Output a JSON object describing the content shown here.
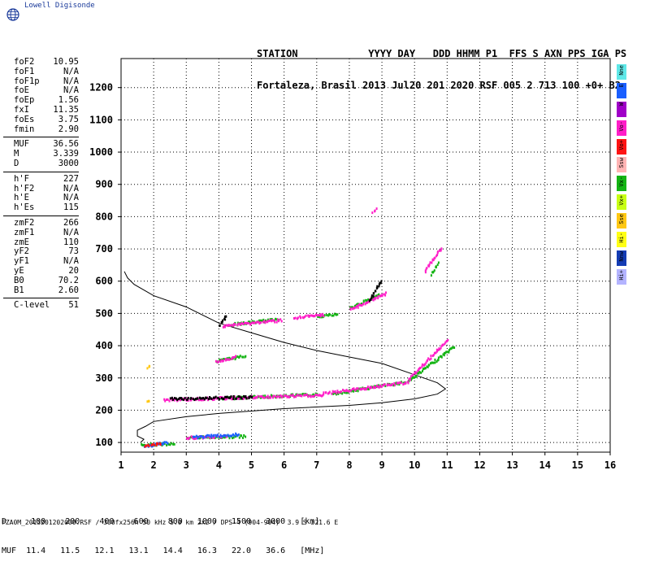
{
  "logo": {
    "text": "Lowell Digisonde"
  },
  "header": {
    "line1": "STATION            YYYY DAY   DDD HHMM P1  FFS S AXN PPS IGA PS",
    "line2": "Fortaleza, Brasil 2013 Jul20 201 2020 RSF 005 2 713 100 +0+ B2"
  },
  "params": {
    "group1": [
      {
        "label": "foF2",
        "value": "10.95"
      },
      {
        "label": "foF1",
        "value": "N/A"
      },
      {
        "label": "foF1p",
        "value": "N/A"
      },
      {
        "label": "foE",
        "value": "N/A"
      },
      {
        "label": "foEp",
        "value": "1.56"
      },
      {
        "label": "fxI",
        "value": "11.35"
      },
      {
        "label": "foEs",
        "value": "3.75"
      },
      {
        "label": "fmin",
        "value": "2.90"
      }
    ],
    "group2": [
      {
        "label": "MUF",
        "value": "36.56"
      },
      {
        "label": "M",
        "value": "3.339"
      },
      {
        "label": "D",
        "value": "3000"
      }
    ],
    "group3": [
      {
        "label": "h'F",
        "value": "227"
      },
      {
        "label": "h'F2",
        "value": "N/A"
      },
      {
        "label": "h'E",
        "value": "N/A"
      },
      {
        "label": "h'Es",
        "value": "115"
      }
    ],
    "group4": [
      {
        "label": "zmF2",
        "value": "266"
      },
      {
        "label": "zmF1",
        "value": "N/A"
      },
      {
        "label": "zmE",
        "value": "110"
      },
      {
        "label": "yF2",
        "value": "73"
      },
      {
        "label": "yF1",
        "value": "N/A"
      },
      {
        "label": "yE",
        "value": "20"
      },
      {
        "label": "B0",
        "value": "70.2"
      },
      {
        "label": "B1",
        "value": "2.60"
      }
    ],
    "group5": [
      {
        "label": "C-level",
        "value": "51"
      }
    ]
  },
  "legend": [
    {
      "label": "Nne",
      "color": "#5fe8e8"
    },
    {
      "label": "E",
      "color": "#1a5fff"
    },
    {
      "label": "W",
      "color": "#a000c8"
    },
    {
      "label": "Vo-",
      "color": "#ff1ec8"
    },
    {
      "label": "Vo+",
      "color": "#ff1414"
    },
    {
      "label": "Ssw",
      "color": "#ffb4b4"
    },
    {
      "label": "Vx-",
      "color": "#14b414"
    },
    {
      "label": "Vx+",
      "color": "#c8ff14"
    },
    {
      "label": "Sse",
      "color": "#ffc814"
    },
    {
      "label": "Hi-",
      "color": "#ffff14"
    },
    {
      "label": "Nnw",
      "color": "#143cb4"
    },
    {
      "label": "Hi+",
      "color": "#b4b4ff"
    }
  ],
  "bottom": {
    "line1": "D     100    200    400    600    800   1000   1500   3000   [km]",
    "line2": "MUF  11.4   11.5   12.1   13.1   14.4   16.3   22.0   36.6   [MHz]"
  },
  "footer": "FZA0M_2013201202000.RSF / 300fx256h 50 kHz 5.0 km 2x2 / DPS-4 (904-904)  3.9 S 321.6 E",
  "chart_data": {
    "type": "scatter",
    "xlim": [
      1,
      16
    ],
    "ylim": [
      70,
      1290
    ],
    "xticks": [
      1,
      2,
      3,
      4,
      5,
      6,
      7,
      8,
      9,
      10,
      11,
      12,
      13,
      14,
      15,
      16
    ],
    "yticks": [
      100,
      200,
      300,
      400,
      500,
      600,
      700,
      800,
      900,
      1000,
      1100,
      1200
    ],
    "grid": true,
    "profile": {
      "color": "#000000",
      "points": [
        [
          1.1,
          630
        ],
        [
          1.2,
          610
        ],
        [
          1.4,
          590
        ],
        [
          2,
          555
        ],
        [
          3,
          520
        ],
        [
          4,
          470
        ],
        [
          5,
          440
        ],
        [
          6,
          410
        ],
        [
          7,
          385
        ],
        [
          8,
          365
        ],
        [
          9,
          345
        ],
        [
          10,
          310
        ],
        [
          10.7,
          285
        ],
        [
          10.95,
          266
        ],
        [
          10.7,
          250
        ],
        [
          10,
          235
        ],
        [
          9,
          223
        ],
        [
          8,
          215
        ],
        [
          6,
          205
        ],
        [
          4,
          190
        ],
        [
          3,
          180
        ],
        [
          2,
          165
        ],
        [
          1.75,
          150
        ],
        [
          1.5,
          138
        ],
        [
          1.5,
          120
        ],
        [
          1.7,
          110
        ],
        [
          1.6,
          100
        ]
      ]
    },
    "echo_groups": [
      {
        "color": "#14b414",
        "segments": [
          {
            "x": [
              4,
              7
            ],
            "y": [
              240,
              252
            ]
          },
          {
            "x": [
              7.5,
              9.8
            ],
            "y": [
              255,
              292
            ]
          },
          {
            "x": [
              9.8,
              11.2
            ],
            "y": [
              295,
              400
            ]
          },
          {
            "x": [
              3,
              4.8
            ],
            "y": [
              118,
              122
            ]
          },
          {
            "x": [
              1.6,
              2.6
            ],
            "y": [
              95,
              100
            ]
          },
          {
            "x": [
              3.9,
              4.8
            ],
            "y": [
              355,
              372
            ]
          },
          {
            "x": [
              4.3,
              5.8
            ],
            "y": [
              468,
              485
            ]
          },
          {
            "x": [
              7,
              7.6
            ],
            "y": [
              495,
              500
            ]
          },
          {
            "x": [
              8,
              8.9
            ],
            "y": [
              520,
              560
            ]
          },
          {
            "x": [
              10.5,
              10.7
            ],
            "y": [
              625,
              660
            ]
          }
        ]
      },
      {
        "color": "#ff1ec8",
        "segments": [
          {
            "x": [
              2.3,
              7.2
            ],
            "y": [
              235,
              250
            ]
          },
          {
            "x": [
              7.2,
              9.8
            ],
            "y": [
              255,
              290
            ]
          },
          {
            "x": [
              9.8,
              11
            ],
            "y": [
              298,
              420
            ]
          },
          {
            "x": [
              4.1,
              5.9
            ],
            "y": [
              465,
              482
            ]
          },
          {
            "x": [
              6.3,
              7.2
            ],
            "y": [
              490,
              498
            ]
          },
          {
            "x": [
              8,
              9.1
            ],
            "y": [
              515,
              565
            ]
          },
          {
            "x": [
              10.3,
              10.8
            ],
            "y": [
              635,
              705
            ]
          },
          {
            "x": [
              8.7,
              8.8
            ],
            "y": [
              815,
              825
            ]
          },
          {
            "x": [
              3.9,
              4.5
            ],
            "y": [
              355,
              368
            ]
          },
          {
            "x": [
              3,
              4.2
            ],
            "y": [
              118,
              123
            ]
          }
        ]
      },
      {
        "color": "#1a5fff",
        "segments": [
          {
            "x": [
              1.7,
              2.4
            ],
            "y": [
              92,
              102
            ]
          },
          {
            "x": [
              3.2,
              4.6
            ],
            "y": [
              120,
              128
            ]
          }
        ]
      },
      {
        "color": "#ff1414",
        "segments": [
          {
            "x": [
              1.7,
              2.2
            ],
            "y": [
              93,
              98
            ]
          }
        ]
      },
      {
        "color": "#ffc814",
        "segments": [
          {
            "x": [
              1.8,
              1.85
            ],
            "y": [
              335,
              340
            ]
          },
          {
            "x": [
              1.8,
              1.85
            ],
            "y": [
              230,
              235
            ]
          }
        ]
      },
      {
        "color": "#000000",
        "segments": [
          {
            "x": [
              4,
              4.2
            ],
            "y": [
              465,
              495
            ]
          },
          {
            "x": [
              8.6,
              8.95
            ],
            "y": [
              540,
              605
            ]
          },
          {
            "x": [
              2.5,
              5
            ],
            "y": [
              238,
              244
            ]
          }
        ]
      }
    ]
  }
}
